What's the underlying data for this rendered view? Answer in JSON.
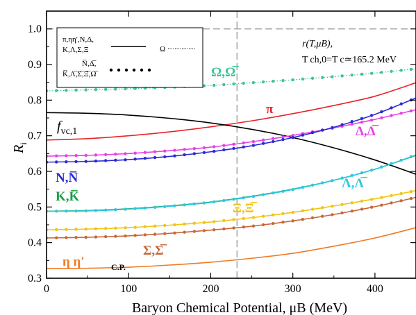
{
  "chart_data": {
    "type": "line",
    "title": "",
    "xlabel": "Baryon Chemical Potential, μB (MeV)",
    "ylabel": "R",
    "ylabel_sub": "i",
    "xlim": [
      0,
      450
    ],
    "ylim": [
      0.3,
      1.05
    ],
    "xticks": [
      0,
      100,
      200,
      300,
      400
    ],
    "yticks": [
      0.3,
      0.4,
      0.5,
      0.6,
      0.7,
      0.8,
      0.9,
      1.0
    ],
    "xtick_labels": [
      "0",
      "100",
      "200",
      "300",
      "400"
    ],
    "ytick_labels": [
      "0.3",
      "0.4",
      "0.5",
      "0.6",
      "0.7",
      "0.8",
      "0.9",
      "1.0"
    ],
    "reference_lines": [
      {
        "orientation": "horizontal",
        "value": 1.0,
        "style": "dashed",
        "color": "#999999"
      },
      {
        "orientation": "vertical",
        "value": 232,
        "style": "dashed",
        "color": "#999999"
      }
    ],
    "x": [
      0,
      50,
      100,
      150,
      200,
      250,
      300,
      350,
      400,
      450
    ],
    "series": [
      {
        "name": "Ω, Ω̅",
        "label_text": "Ω,Ω̅",
        "color": "#3cc49a",
        "style": "dotted",
        "markers": true,
        "values": [
          0.826,
          0.829,
          0.832,
          0.836,
          0.841,
          0.849,
          0.857,
          0.866,
          0.876,
          0.888
        ]
      },
      {
        "name": "π",
        "label_text": "π",
        "color": "#e8222a",
        "style": "solid",
        "markers": false,
        "values": [
          0.688,
          0.692,
          0.7,
          0.711,
          0.725,
          0.742,
          0.762,
          0.785,
          0.811,
          0.849
        ]
      },
      {
        "name": "f vc,1",
        "label_text": "f",
        "label_sub": "vc,1",
        "color": "#000000",
        "style": "solid",
        "markers": false,
        "values": [
          0.765,
          0.763,
          0.758,
          0.749,
          0.736,
          0.718,
          0.695,
          0.666,
          0.632,
          0.592
        ]
      },
      {
        "name": "Δ, Δ̅",
        "label_text": "Δ,Δ̅",
        "color": "#e641e6",
        "style": "solid",
        "markers": true,
        "values": [
          0.643,
          0.645,
          0.65,
          0.658,
          0.668,
          0.683,
          0.701,
          0.722,
          0.746,
          0.773
        ]
      },
      {
        "name": "N, N̅",
        "label_text": "N,N̅",
        "color": "#2a2ad6",
        "style": "solid",
        "markers": true,
        "values": [
          0.626,
          0.628,
          0.633,
          0.642,
          0.655,
          0.672,
          0.695,
          0.724,
          0.76,
          0.806
        ]
      },
      {
        "name": "K, K̅",
        "label_text": "K,K̅",
        "color": "#1a9e46",
        "style": "solid",
        "markers": false,
        "values": [
          0.488,
          0.49,
          0.495,
          0.503,
          0.514,
          0.53,
          0.55,
          0.575,
          0.606,
          0.645
        ]
      },
      {
        "name": "Λ, Λ̅",
        "label_text": "Λ,Λ̅",
        "color": "#2ec7e0",
        "style": "solid",
        "markers": true,
        "values": [
          0.488,
          0.489,
          0.494,
          0.502,
          0.513,
          0.529,
          0.549,
          0.575,
          0.606,
          0.646
        ]
      },
      {
        "name": "Ξ, Ξ̅",
        "label_text": "Ξ,Ξ̅",
        "color": "#f2c414",
        "style": "solid",
        "markers": true,
        "values": [
          0.436,
          0.438,
          0.442,
          0.449,
          0.458,
          0.47,
          0.485,
          0.503,
          0.523,
          0.546
        ]
      },
      {
        "name": "Σ, Σ̅",
        "label_text": "Σ,Σ̅",
        "color": "#c8673a",
        "style": "solid",
        "markers": true,
        "values": [
          0.413,
          0.415,
          0.419,
          0.426,
          0.435,
          0.446,
          0.461,
          0.479,
          0.501,
          0.527
        ]
      },
      {
        "name": "η η'",
        "label_text": "η η'",
        "color": "#f07a22",
        "style": "solid",
        "markers": false,
        "values": [
          0.327,
          0.328,
          0.331,
          0.337,
          0.345,
          0.356,
          0.37,
          0.39,
          0.413,
          0.442
        ]
      }
    ],
    "legend": {
      "position": "top-left",
      "line1": "π,ηη',N,Δ,",
      "line2": "K,Λ,Σ,Ξ",
      "line3": "N̅,Δ̅,",
      "line4": "K̅,Λ̅,Σ̅,Ξ̅,Ω̅",
      "omega": "Ω"
    },
    "annotations": {
      "r_line_1": "r(T,μB),",
      "r_line_2": "T ch,0=T c≃165.2 MeV",
      "cp": "C.P."
    }
  }
}
